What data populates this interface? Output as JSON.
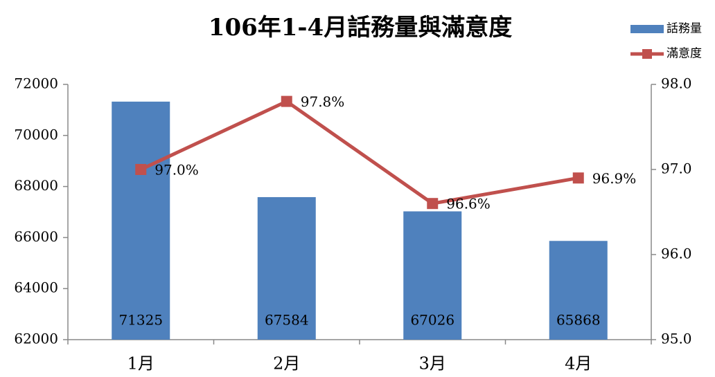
{
  "chart_data": {
    "type": "bar",
    "title": "106年1-4月話務量與滿意度",
    "categories": [
      "1月",
      "2月",
      "3月",
      "4月"
    ],
    "series": [
      {
        "name": "話務量",
        "type": "bar",
        "color": "#4f81bd",
        "values": [
          71325,
          67584,
          67026,
          65868
        ]
      },
      {
        "name": "滿意度",
        "type": "line",
        "axis": "y2",
        "color": "#c0504d",
        "values": [
          97.0,
          97.8,
          96.6,
          96.9
        ],
        "value_labels": [
          "97.0%",
          "97.8%",
          "96.6%",
          "96.9%"
        ]
      }
    ],
    "ylim": [
      62000,
      72000
    ],
    "yticks": [
      62000,
      64000,
      66000,
      68000,
      70000,
      72000
    ],
    "y2lim": [
      95,
      98
    ],
    "y2ticks": [
      {
        "value": 95,
        "label": "95.0"
      },
      {
        "value": 96,
        "label": "96.0"
      },
      {
        "value": 97,
        "label": "97.0"
      },
      {
        "value": 98,
        "label": "98.0"
      }
    ],
    "grid": false,
    "legend": "top-right"
  }
}
